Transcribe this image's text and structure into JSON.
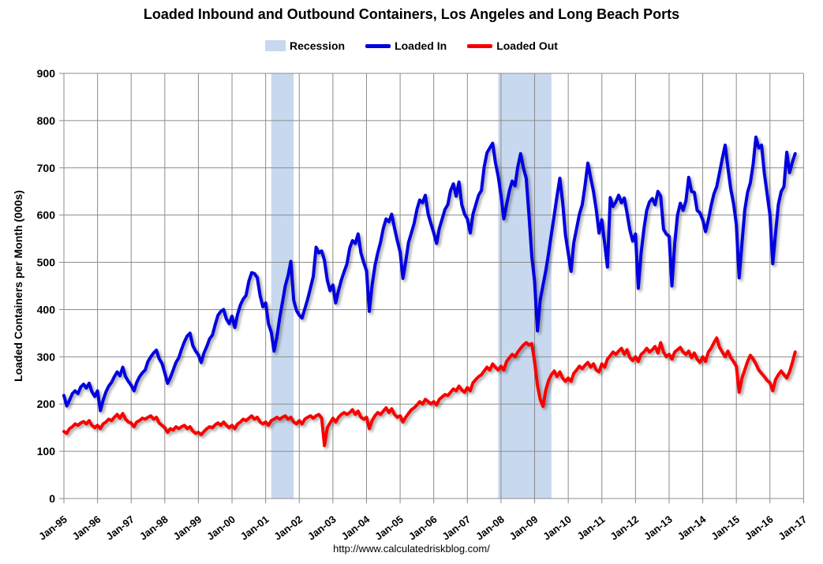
{
  "title": "Loaded Inbound and Outbound Containers, Los Angeles and Long Beach Ports",
  "footer": "http://www.calculatedriskblog.com/",
  "legend": [
    {
      "label": "Recession",
      "type": "band",
      "color": "#C8D8EE"
    },
    {
      "label": "Loaded In",
      "type": "line",
      "color": "#0000E0"
    },
    {
      "label": "Loaded Out",
      "type": "line",
      "color": "#F90000"
    }
  ],
  "chart_data": {
    "type": "line",
    "title": "Loaded Inbound and Outbound Containers, Los Angeles and Long Beach Ports",
    "xlabel": "",
    "ylabel": "Loaded Containers per Month (000s)",
    "ylim": [
      0,
      900
    ],
    "ytick_interval": 100,
    "y_tick_labels": [
      "0",
      "100",
      "200",
      "300",
      "400",
      "500",
      "600",
      "700",
      "800",
      "900"
    ],
    "x_tick_labels": [
      "Jan-95",
      "Jan-96",
      "Jan-97",
      "Jan-98",
      "Jan-99",
      "Jan-00",
      "Jan-01",
      "Jan-02",
      "Jan-03",
      "Jan-04",
      "Jan-05",
      "Jan-06",
      "Jan-07",
      "Jan-08",
      "Jan-09",
      "Jan-10",
      "Jan-11",
      "Jan-12",
      "Jan-13",
      "Jan-14",
      "Jan-15",
      "Jan-16",
      "Jan-17"
    ],
    "x_axis_months_total": 264,
    "frequency": "monthly",
    "x_start": "Jan-95",
    "x_end_of_data": "Oct-16",
    "grid": true,
    "legend_position": "top",
    "gridline_color": "#8C8C8C",
    "recession_band_color": "#C8D8EE",
    "recession_bands": [
      {
        "from": "Mar-01",
        "to": "Nov-01",
        "start_month_index": 74,
        "end_month_index": 82
      },
      {
        "from": "Dec-07",
        "to": "Jul-09",
        "start_month_index": 155,
        "end_month_index": 174
      }
    ],
    "series": [
      {
        "name": "Loaded In",
        "color": "#0000E0",
        "values": [
          218,
          196,
          208,
          222,
          228,
          222,
          236,
          242,
          234,
          244,
          226,
          216,
          228,
          186,
          208,
          226,
          238,
          246,
          258,
          268,
          260,
          278,
          258,
          248,
          240,
          228,
          246,
          258,
          266,
          272,
          290,
          300,
          308,
          314,
          296,
          286,
          266,
          244,
          256,
          272,
          288,
          298,
          316,
          332,
          344,
          350,
          324,
          312,
          304,
          288,
          308,
          322,
          338,
          346,
          368,
          388,
          396,
          400,
          380,
          370,
          386,
          362,
          390,
          410,
          422,
          430,
          460,
          478,
          476,
          468,
          430,
          406,
          414,
          370,
          352,
          312,
          342,
          382,
          416,
          450,
          472,
          502,
          420,
          398,
          388,
          382,
          402,
          422,
          446,
          470,
          532,
          520,
          524,
          504,
          462,
          440,
          452,
          414,
          440,
          462,
          480,
          496,
          530,
          546,
          540,
          560,
          520,
          500,
          482,
          396,
          452,
          492,
          520,
          542,
          572,
          592,
          586,
          602,
          572,
          546,
          522,
          466,
          502,
          542,
          562,
          582,
          612,
          632,
          626,
          642,
          602,
          582,
          562,
          540,
          572,
          592,
          612,
          622,
          652,
          666,
          640,
          670,
          622,
          602,
          592,
          562,
          602,
          622,
          642,
          652,
          702,
          732,
          742,
          752,
          712,
          682,
          642,
          592,
          622,
          652,
          672,
          662,
          702,
          730,
          700,
          678,
          600,
          512,
          460,
          355,
          420,
          452,
          482,
          520,
          560,
          600,
          640,
          678,
          628,
          558,
          520,
          481,
          542,
          572,
          602,
          622,
          662,
          710,
          680,
          650,
          612,
          562,
          590,
          540,
          490,
          637,
          618,
          628,
          642,
          626,
          636,
          604,
          568,
          545,
          560,
          445,
          520,
          570,
          610,
          628,
          635,
          622,
          650,
          640,
          570,
          560,
          555,
          450,
          540,
          600,
          625,
          610,
          630,
          680,
          650,
          648,
          610,
          605,
          590,
          565,
          590,
          620,
          645,
          660,
          690,
          720,
          748,
          700,
          655,
          625,
          580,
          467,
          540,
          610,
          648,
          668,
          708,
          765,
          742,
          748,
          688,
          645,
          600,
          497,
          562,
          622,
          650,
          660,
          733,
          690,
          712,
          730
        ]
      },
      {
        "name": "Loaded Out",
        "color": "#F90000",
        "values": [
          142,
          138,
          148,
          152,
          158,
          155,
          160,
          163,
          158,
          165,
          155,
          150,
          155,
          148,
          158,
          162,
          168,
          165,
          172,
          178,
          170,
          180,
          168,
          162,
          160,
          152,
          162,
          165,
          170,
          168,
          172,
          175,
          168,
          172,
          160,
          155,
          150,
          140,
          148,
          145,
          152,
          148,
          152,
          155,
          148,
          152,
          143,
          138,
          140,
          135,
          142,
          148,
          152,
          150,
          156,
          160,
          155,
          162,
          155,
          150,
          155,
          148,
          158,
          162,
          168,
          165,
          170,
          175,
          168,
          172,
          162,
          158,
          162,
          155,
          165,
          168,
          172,
          168,
          172,
          175,
          168,
          172,
          162,
          158,
          165,
          158,
          168,
          172,
          175,
          170,
          175,
          178,
          170,
          112,
          150,
          160,
          170,
          162,
          172,
          178,
          182,
          178,
          182,
          188,
          178,
          185,
          172,
          168,
          172,
          148,
          165,
          175,
          182,
          178,
          185,
          192,
          182,
          190,
          178,
          172,
          175,
          162,
          172,
          180,
          188,
          192,
          198,
          205,
          200,
          210,
          205,
          200,
          205,
          198,
          210,
          215,
          220,
          218,
          225,
          232,
          228,
          238,
          230,
          225,
          235,
          228,
          245,
          252,
          258,
          262,
          270,
          278,
          272,
          285,
          278,
          272,
          280,
          272,
          290,
          298,
          305,
          300,
          310,
          318,
          325,
          330,
          325,
          328,
          290,
          240,
          210,
          195,
          230,
          250,
          262,
          270,
          258,
          268,
          255,
          248,
          255,
          248,
          265,
          272,
          280,
          275,
          282,
          288,
          278,
          285,
          272,
          268,
          285,
          278,
          295,
          302,
          310,
          305,
          312,
          318,
          305,
          315,
          298,
          292,
          300,
          290,
          305,
          310,
          318,
          310,
          315,
          322,
          308,
          330,
          310,
          300,
          305,
          295,
          310,
          315,
          320,
          310,
          305,
          312,
          298,
          308,
          295,
          288,
          300,
          290,
          310,
          318,
          330,
          340,
          320,
          310,
          300,
          312,
          298,
          290,
          280,
          225,
          255,
          272,
          290,
          303,
          295,
          285,
          272,
          265,
          258,
          250,
          245,
          228,
          252,
          262,
          270,
          262,
          255,
          268,
          288,
          310
        ]
      }
    ]
  }
}
